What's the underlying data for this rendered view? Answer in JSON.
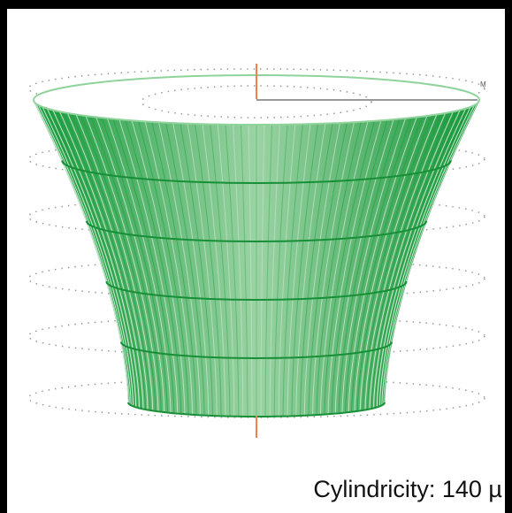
{
  "marker": "M",
  "caption": "Cylindricity: 140 µ"
}
